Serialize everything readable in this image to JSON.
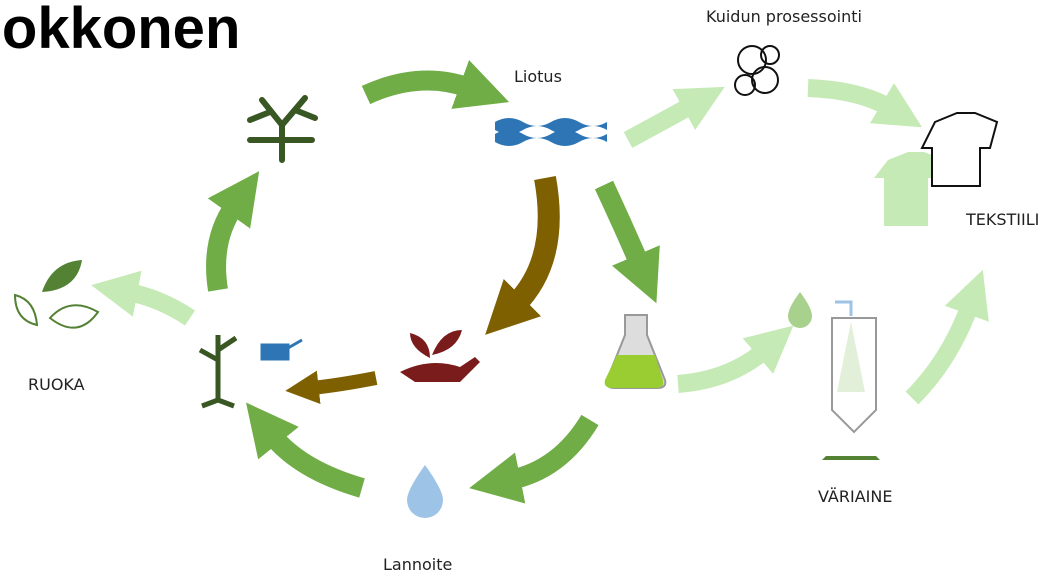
{
  "title": "Nokkonen",
  "nodes": [
    {
      "label": "Liotus"
    },
    {
      "label": "Kuidun prosessointi"
    },
    {
      "label": "TEKSTIILI"
    },
    {
      "label": "RUOKA"
    },
    {
      "label": "Lannoite"
    },
    {
      "label": "VÄRIAINE"
    }
  ]
}
